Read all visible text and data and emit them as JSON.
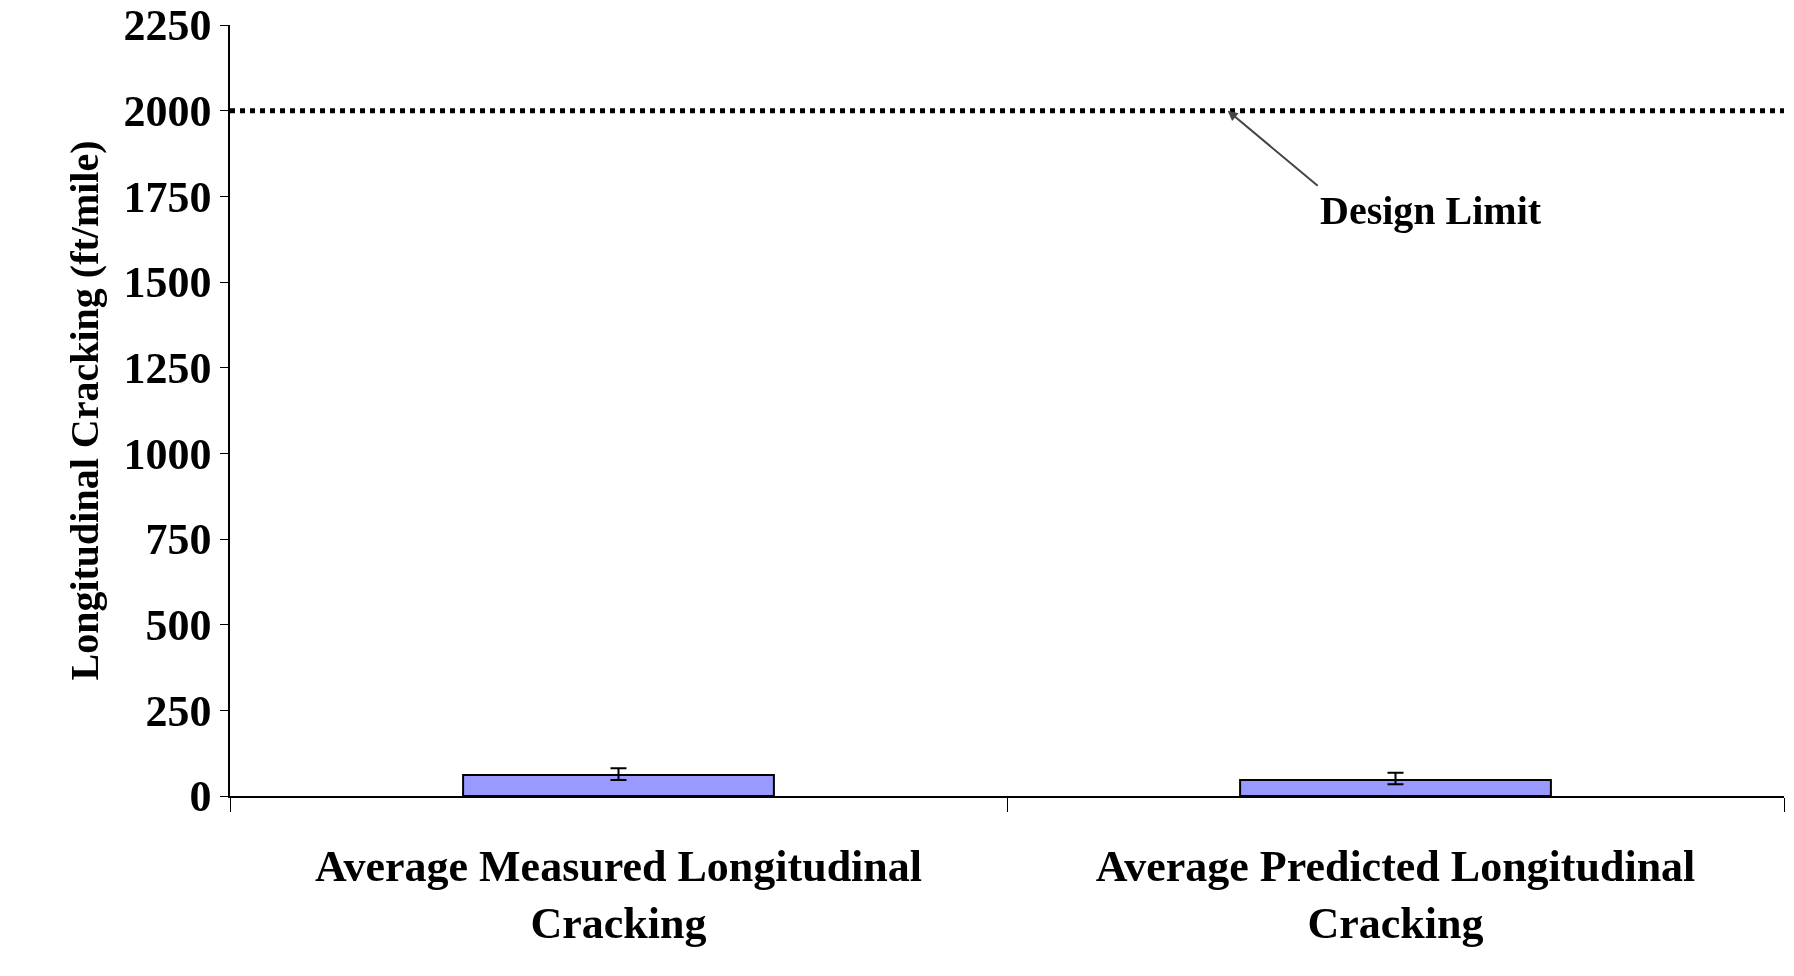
{
  "chart_data": {
    "type": "bar",
    "ylabel": "Longitudinal Cracking (ft/mile)",
    "categories": [
      "Average Measured Longitudinal Cracking",
      "Average Predicted Longitudinal Cracking"
    ],
    "values": [
      61,
      47
    ],
    "color": "#9999ff",
    "errors": [
      [
        47,
        81
      ],
      [
        34,
        68
      ]
    ],
    "ylim": [
      0,
      2250
    ],
    "yticks": [
      0,
      250,
      500,
      750,
      1000,
      1250,
      1500,
      1750,
      2000,
      2250
    ],
    "grid": false,
    "ref_lines": [
      {
        "axis": "y",
        "value": 2000,
        "label": "Design Limit",
        "color": "#000000",
        "line_style": "dotted"
      }
    ]
  }
}
